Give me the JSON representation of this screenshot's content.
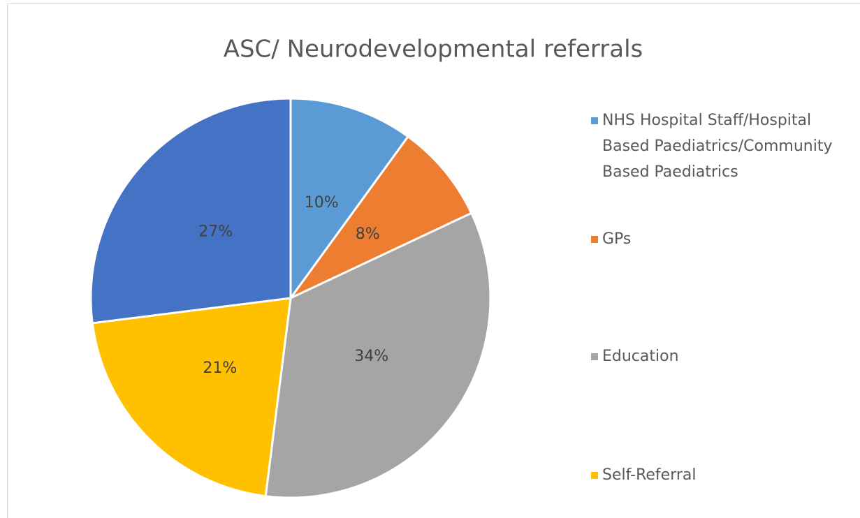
{
  "chart_data": {
    "type": "pie",
    "title": "ASC/ Neurodevelopmental referrals",
    "categories": [
      "NHS Hospital Staff/Hospital Based Paediatrics/Community Based Paediatrics",
      "GPs",
      "Education",
      "Self-Referral",
      null
    ],
    "values": [
      10,
      8,
      34,
      21,
      27
    ],
    "value_labels": [
      "10%",
      "8%",
      "34%",
      "21%",
      "27%"
    ],
    "colors": [
      "#5b9bd5",
      "#ed7d31",
      "#a5a5a5",
      "#ffc000",
      "#4472c4"
    ],
    "legend": "right"
  }
}
